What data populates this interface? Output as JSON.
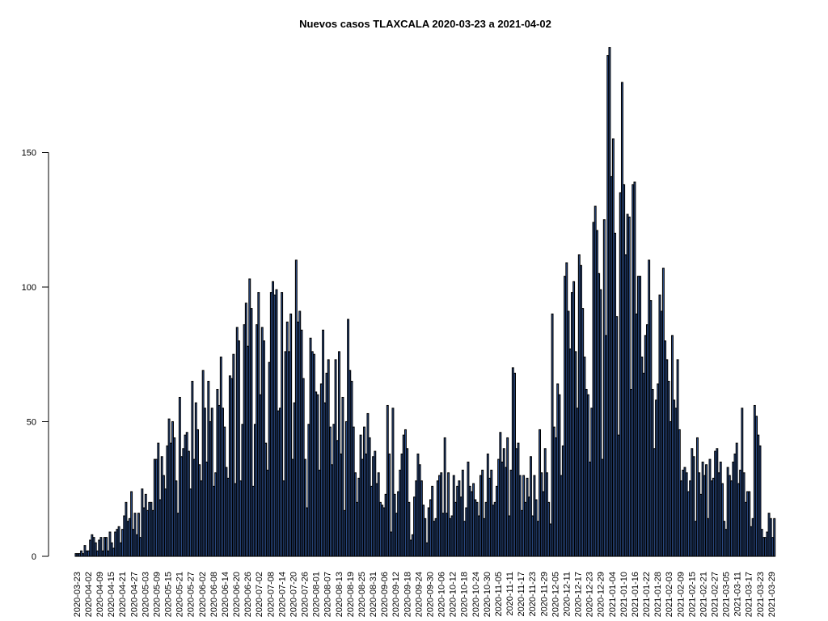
{
  "chart_data": {
    "type": "bar",
    "title": "Nuevos casos TLAXCALA 2020-03-23 a 2021-04-02",
    "xlabel": "",
    "ylabel": "",
    "ylim": [
      0,
      190
    ],
    "yticks": [
      0,
      50,
      100,
      150
    ],
    "start_date": "2020-03-23",
    "end_date": "2021-04-02",
    "x_tick_labels": [
      "2020-03-23",
      "2020-04-02",
      "2020-04-09",
      "2020-04-15",
      "2020-04-21",
      "2020-04-27",
      "2020-05-03",
      "2020-05-09",
      "2020-05-15",
      "2020-05-21",
      "2020-05-27",
      "2020-06-02",
      "2020-06-08",
      "2020-06-14",
      "2020-06-20",
      "2020-06-26",
      "2020-07-02",
      "2020-07-08",
      "2020-07-14",
      "2020-07-20",
      "2020-07-26",
      "2020-08-01",
      "2020-08-07",
      "2020-08-13",
      "2020-08-19",
      "2020-08-25",
      "2020-08-31",
      "2020-09-06",
      "2020-09-12",
      "2020-09-18",
      "2020-09-24",
      "2020-09-30",
      "2020-10-06",
      "2020-10-12",
      "2020-10-18",
      "2020-10-24",
      "2020-10-30",
      "2020-11-05",
      "2020-11-11",
      "2020-11-17",
      "2020-11-23",
      "2020-11-29",
      "2020-12-05",
      "2020-12-11",
      "2020-12-17",
      "2020-12-23",
      "2020-12-29",
      "2021-01-04",
      "2021-01-10",
      "2021-01-16",
      "2021-01-22",
      "2021-01-28",
      "2021-02-03",
      "2021-02-09",
      "2021-02-15",
      "2021-02-21",
      "2021-02-27",
      "2021-03-05",
      "2021-03-11",
      "2021-03-17",
      "2021-03-23",
      "2021-03-29"
    ],
    "bar_fill": "#3a66b5",
    "bar_stroke": "#000000",
    "values": [
      1,
      1,
      1,
      2,
      1,
      4,
      2,
      2,
      6,
      8,
      7,
      5,
      2,
      6,
      7,
      2,
      7,
      7,
      2,
      9,
      5,
      3,
      9,
      10,
      11,
      5,
      10,
      15,
      20,
      13,
      14,
      24,
      10,
      16,
      8,
      16,
      7,
      25,
      18,
      23,
      17,
      20,
      20,
      17,
      36,
      36,
      42,
      21,
      37,
      30,
      25,
      41,
      51,
      42,
      50,
      44,
      28,
      16,
      59,
      37,
      40,
      45,
      46,
      39,
      25,
      65,
      36,
      57,
      47,
      34,
      28,
      69,
      55,
      35,
      65,
      50,
      55,
      26,
      31,
      62,
      56,
      74,
      55,
      48,
      33,
      29,
      67,
      66,
      75,
      27,
      85,
      80,
      28,
      49,
      86,
      94,
      78,
      103,
      92,
      26,
      49,
      86,
      98,
      60,
      85,
      80,
      42,
      32,
      72,
      98,
      102,
      97,
      99,
      54,
      55,
      98,
      28,
      76,
      87,
      76,
      90,
      36,
      57,
      110,
      87,
      91,
      84,
      66,
      36,
      18,
      49,
      81,
      76,
      75,
      61,
      60,
      32,
      64,
      84,
      57,
      68,
      73,
      48,
      34,
      49,
      73,
      43,
      76,
      38,
      59,
      17,
      50,
      88,
      69,
      65,
      48,
      31,
      20,
      29,
      45,
      36,
      48,
      38,
      53,
      44,
      26,
      37,
      39,
      27,
      31,
      20,
      19,
      18,
      23,
      56,
      38,
      9,
      55,
      23,
      16,
      24,
      32,
      38,
      45,
      47,
      40,
      20,
      6,
      8,
      22,
      28,
      38,
      34,
      28,
      19,
      14,
      5,
      18,
      21,
      26,
      13,
      14,
      28,
      30,
      31,
      16,
      44,
      16,
      31,
      14,
      15,
      30,
      20,
      26,
      28,
      22,
      32,
      13,
      18,
      35,
      26,
      24,
      27,
      21,
      20,
      15,
      30,
      32,
      14,
      20,
      38,
      29,
      32,
      19,
      20,
      26,
      36,
      46,
      35,
      40,
      33,
      44,
      15,
      32,
      70,
      68,
      40,
      42,
      30,
      17,
      30,
      20,
      29,
      22,
      37,
      15,
      30,
      21,
      13,
      47,
      31,
      24,
      40,
      31,
      20,
      12,
      90,
      48,
      44,
      64,
      60,
      30,
      41,
      104,
      109,
      91,
      77,
      98,
      102,
      76,
      55,
      112,
      108,
      92,
      74,
      62,
      60,
      35,
      55,
      124,
      130,
      121,
      105,
      99,
      36,
      125,
      82,
      186,
      189,
      141,
      155,
      120,
      89,
      45,
      135,
      176,
      138,
      112,
      127,
      126,
      62,
      138,
      139,
      90,
      104,
      104,
      74,
      68,
      82,
      86,
      110,
      95,
      62,
      40,
      58,
      64,
      97,
      91,
      107,
      80,
      73,
      65,
      50,
      82,
      58,
      55,
      73,
      47,
      28,
      32,
      33,
      31,
      24,
      28,
      40,
      37,
      13,
      44,
      31,
      23,
      35,
      30,
      34,
      14,
      36,
      28,
      29,
      39,
      40,
      31,
      35,
      27,
      13,
      10,
      33,
      30,
      28,
      35,
      38,
      42,
      27,
      32,
      55,
      31,
      20,
      24,
      24,
      11,
      14,
      56,
      52,
      45,
      41,
      10,
      7,
      7,
      9,
      16,
      14,
      7,
      14
    ]
  }
}
